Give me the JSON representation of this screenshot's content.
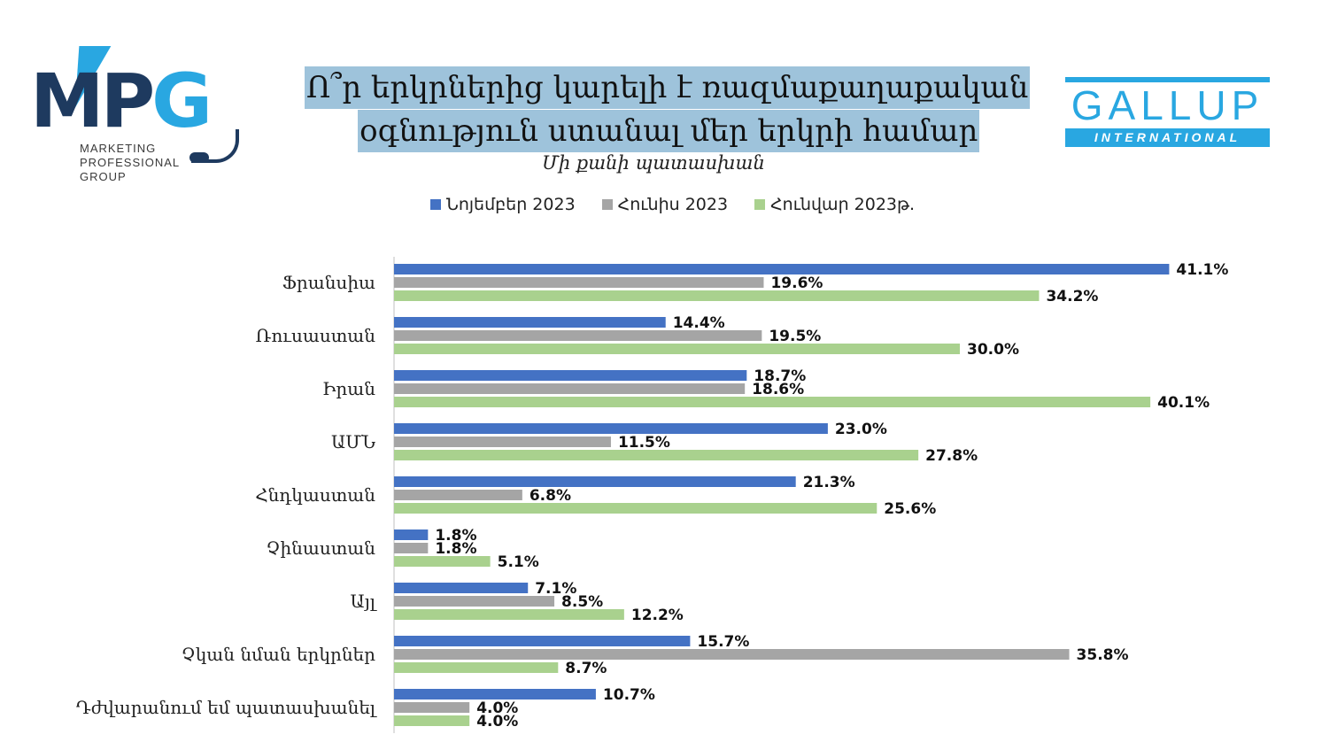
{
  "header": {
    "title_line1": "Ո՞ր երկրներից կարելի է ռազմաքաղաքական",
    "title_line2": "օգնություն ստանալ մեր երկրի համար",
    "subtitle": "Մի քանի պատասխան"
  },
  "logos": {
    "mpg_letters_mp": "MP",
    "mpg_letters_g": "G",
    "mpg_line1": "MARKETING",
    "mpg_line2": "PROFESSIONAL",
    "mpg_line3": "GROUP",
    "gallup_word": "GALLUP",
    "gallup_band": "INTERNATIONAL"
  },
  "colors": {
    "series_nov": "#4472c4",
    "series_jul": "#a5a5a5",
    "series_jan": "#a9d18e",
    "highlight": "#e02020"
  },
  "chart_data": {
    "type": "bar",
    "orientation": "horizontal",
    "categories": [
      "Ֆրանսիա",
      "Ռուսաստան",
      "Իրան",
      "ԱՄՆ",
      "Հնդկաստան",
      "Չինաստան",
      "Այլ",
      "Չկան նման երկրներ",
      "Դժվարանում եմ պատասխանել"
    ],
    "series": [
      {
        "name": "Նոյեմբեր 2023",
        "values": [
          41.1,
          14.4,
          18.7,
          23.0,
          21.3,
          1.8,
          7.1,
          15.7,
          10.7
        ]
      },
      {
        "name": "Հունիս 2023",
        "values": [
          19.6,
          19.5,
          18.6,
          11.5,
          6.8,
          1.8,
          8.5,
          35.8,
          4.0
        ]
      },
      {
        "name": "Հունվար 2023թ.",
        "values": [
          34.2,
          30.0,
          40.1,
          27.8,
          25.6,
          5.1,
          12.2,
          8.7,
          4.0
        ]
      }
    ],
    "value_suffix": "%",
    "highlighted_value": {
      "series": 0,
      "category": 0
    },
    "xlim": [
      0,
      42
    ],
    "legend_position": "top",
    "grid": false
  }
}
